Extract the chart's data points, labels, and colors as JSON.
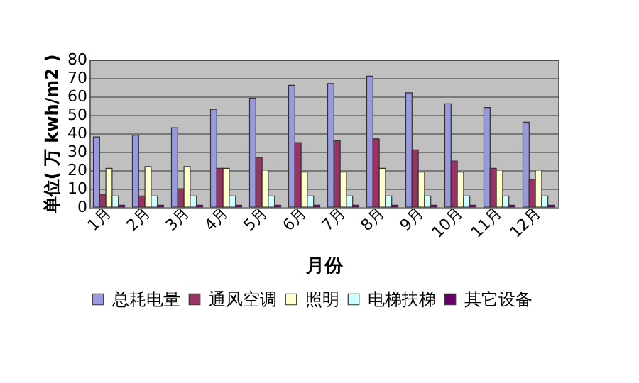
{
  "chart_data": {
    "type": "bar",
    "xlabel": "月份",
    "ylabel": "单位( 万 kwh/m2 )",
    "categories": [
      "1月",
      "2月",
      "3月",
      "4月",
      "5月",
      "6月",
      "7月",
      "8月",
      "9月",
      "10月",
      "11月",
      "12月"
    ],
    "series": [
      {
        "name": "总耗电量",
        "color": "#9999dd",
        "values": [
          38,
          39,
          43,
          53,
          59,
          66,
          67,
          71,
          62,
          56,
          54,
          46
        ]
      },
      {
        "name": "通风空调",
        "color": "#993366",
        "values": [
          7,
          6,
          10,
          21,
          27,
          35,
          36,
          37,
          31,
          25,
          21,
          15
        ]
      },
      {
        "name": "照明",
        "color": "#ffffcc",
        "values": [
          21,
          22,
          22,
          21,
          20,
          19,
          19,
          21,
          19,
          19,
          20,
          20
        ]
      },
      {
        "name": "电梯扶梯",
        "color": "#ccffff",
        "values": [
          6,
          6,
          6,
          6,
          6,
          6,
          6,
          6,
          6,
          6,
          6,
          6
        ]
      },
      {
        "name": "其它设备",
        "color": "#660066",
        "values": [
          1,
          1,
          1,
          1,
          1,
          1,
          1,
          1,
          1,
          1,
          1,
          1
        ]
      }
    ],
    "ylim": [
      0,
      80
    ],
    "yticks": [
      0,
      10,
      20,
      30,
      40,
      50,
      60,
      70,
      80
    ],
    "grid": "y",
    "legend": "bottom"
  }
}
